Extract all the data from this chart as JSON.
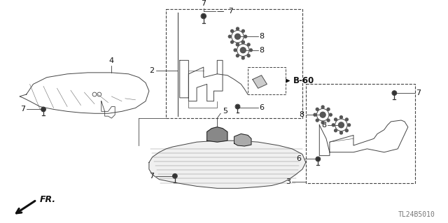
{
  "bg_color": "#ffffff",
  "lc": "#444444",
  "dc": "#111111",
  "gc": "#999999",
  "title_code": "TL24B5010",
  "fr_label": "FR.",
  "figsize": [
    6.4,
    3.19
  ],
  "dpi": 100
}
